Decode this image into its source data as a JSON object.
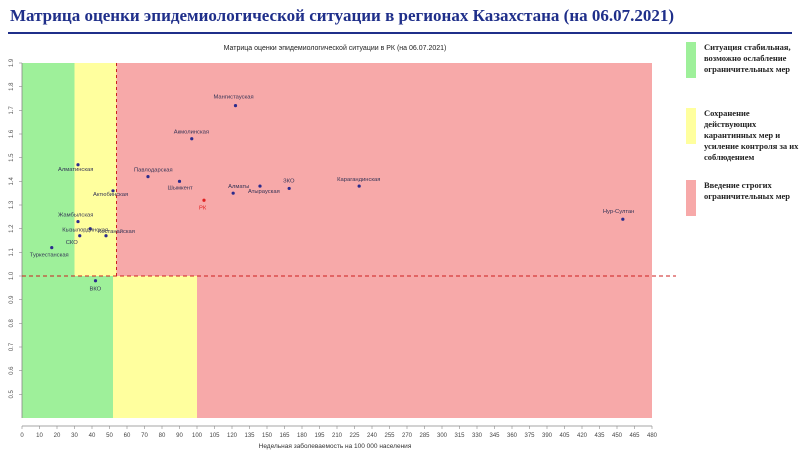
{
  "slide": {
    "title": "Матрица оценки эпидемиологической ситуации в регионах Казахстана (на 06.07.2021)"
  },
  "legend": [
    {
      "color": "#9ef09a",
      "text": "Ситуация стабильная, возможно ослабление ограничительных мер"
    },
    {
      "color": "#ffff9e",
      "text": "Сохранение действующих карантинных мер и усиление контроля за их соблюдением"
    },
    {
      "color": "#f7a9a9",
      "text": "Введение строгих ограничительных мер"
    }
  ],
  "chart_data": {
    "type": "scatter",
    "title": "Матрица оценки эпидемиологической ситуации в РК (на 06.07.2021)",
    "xlabel": "Недельная заболеваемость на 100 000 населения",
    "ylabel": "",
    "xlim": [
      0,
      480
    ],
    "ylim": [
      0.4,
      1.9
    ],
    "x_ticks": [
      "0",
      "10",
      "20",
      "30",
      "40",
      "50",
      "60",
      "70",
      "80",
      "90",
      "100",
      "105",
      "120",
      "135",
      "150",
      "165",
      "180",
      "195",
      "210",
      "225",
      "240",
      "255",
      "270",
      "285",
      "300",
      "315",
      "330",
      "345",
      "360",
      "375",
      "390",
      "405",
      "420",
      "435",
      "450",
      "465",
      "480"
    ],
    "y_ticks": [
      "0.5",
      "0.6",
      "0.7",
      "0.8",
      "0.9",
      "1.0",
      "1.1",
      "1.2",
      "1.3",
      "1.4",
      "1.5",
      "1.6",
      "1.7",
      "1.8",
      "1.9"
    ],
    "zones": [
      {
        "color": "#9ef09a",
        "x": [
          0,
          30
        ],
        "y": [
          1.0,
          1.9
        ]
      },
      {
        "color": "#ffff9e",
        "x": [
          30,
          54
        ],
        "y": [
          1.0,
          1.9
        ]
      },
      {
        "color": "#f7a9a9",
        "x": [
          54,
          480
        ],
        "y": [
          1.0,
          1.9
        ]
      },
      {
        "color": "#9ef09a",
        "x": [
          0,
          52
        ],
        "y": [
          0.4,
          1.0
        ]
      },
      {
        "color": "#ffff9e",
        "x": [
          52,
          100
        ],
        "y": [
          0.4,
          1.0
        ]
      },
      {
        "color": "#f7a9a9",
        "x": [
          100,
          480
        ],
        "y": [
          0.4,
          1.0
        ]
      }
    ],
    "threshold": {
      "y": 1.0,
      "x": 54
    },
    "points": [
      {
        "label": "Мангистауская",
        "x": 123,
        "y": 1.72,
        "color": "#2b2b8c"
      },
      {
        "label": "Акмолинская",
        "x": 97,
        "y": 1.58,
        "color": "#2b2b8c"
      },
      {
        "label": "Алматинская",
        "x": 32,
        "y": 1.47,
        "color": "#2b2b8c"
      },
      {
        "label": "Павлодарская",
        "x": 72,
        "y": 1.42,
        "color": "#2b2b8c"
      },
      {
        "label": "Актюбинская",
        "x": 52,
        "y": 1.36,
        "color": "#2b2b8c"
      },
      {
        "label": "Шымкент",
        "x": 90,
        "y": 1.4,
        "color": "#2b2b8c"
      },
      {
        "label": "Алматы",
        "x": 121,
        "y": 1.35,
        "color": "#2b2b8c"
      },
      {
        "label": "Атырауская",
        "x": 144,
        "y": 1.38,
        "color": "#2b2b8c"
      },
      {
        "label": "ЗКО",
        "x": 169,
        "y": 1.37,
        "color": "#2b2b8c"
      },
      {
        "label": "Карагандинская",
        "x": 229,
        "y": 1.38,
        "color": "#2b2b8c"
      },
      {
        "label": "РК",
        "x": 102,
        "y": 1.32,
        "color": "#e02020"
      },
      {
        "label": "Жамбылская",
        "x": 32,
        "y": 1.23,
        "color": "#2b2b8c"
      },
      {
        "label": "Кызылординская",
        "x": 39,
        "y": 1.2,
        "color": "#2b2b8c"
      },
      {
        "label": "Костанайская",
        "x": 48,
        "y": 1.17,
        "color": "#2b2b8c"
      },
      {
        "label": "СКО",
        "x": 33,
        "y": 1.17,
        "color": "#2b2b8c"
      },
      {
        "label": "Туркестанская",
        "x": 17,
        "y": 1.12,
        "color": "#2b2b8c"
      },
      {
        "label": "ВКО",
        "x": 42,
        "y": 0.98,
        "color": "#2b2b8c"
      },
      {
        "label": "Нур-Султан",
        "x": 455,
        "y": 1.24,
        "color": "#2b2b8c"
      }
    ]
  }
}
